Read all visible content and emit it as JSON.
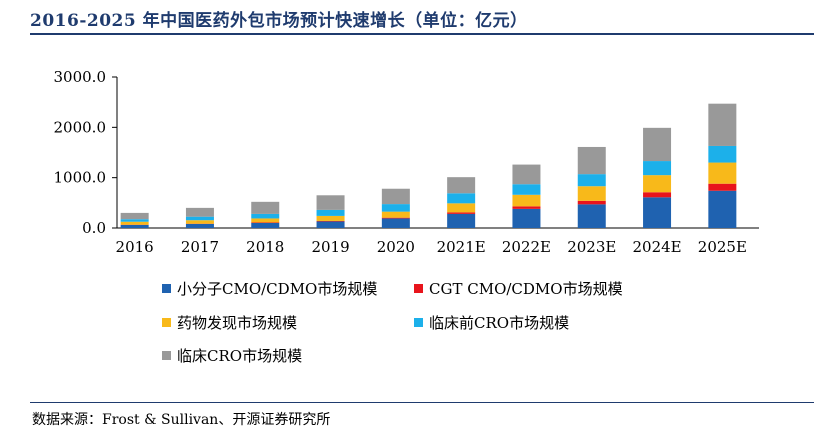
{
  "title": "2016-2025 年中国医药外包市场预计快速增长（单位：亿元）",
  "source": "数据来源：Frost & Sullivan、开源证券研究所",
  "colors": {
    "title": "#1f3b6e",
    "small_molecule": "#1f62b0",
    "cgt": "#e8141c",
    "discovery": "#f8b91a",
    "preclinical": "#1cb0ea",
    "clinical": "#999999"
  },
  "chart_data": {
    "type": "bar",
    "stacked": true,
    "categories": [
      "2016",
      "2017",
      "2018",
      "2019",
      "2020",
      "2021E",
      "2022E",
      "2023E",
      "2024E",
      "2025E"
    ],
    "ylim": [
      0,
      3000
    ],
    "yticks": [
      "0.0",
      "1000.0",
      "2000.0",
      "3000.0"
    ],
    "ytick_values": [
      0,
      1000,
      2000,
      3000
    ],
    "grid": false,
    "legend_position": "bottom",
    "series": [
      {
        "name": "小分子CMO/CDMO市场规模",
        "color_key": "small_molecule",
        "values": [
          60,
          80,
          100,
          130,
          190,
          280,
          380,
          470,
          610,
          740
        ]
      },
      {
        "name": "CGT CMO/CDMO市场规模",
        "color_key": "cgt",
        "values": [
          5,
          5,
          10,
          10,
          15,
          30,
          50,
          70,
          100,
          140
        ]
      },
      {
        "name": "药物发现市场规模",
        "color_key": "discovery",
        "values": [
          60,
          70,
          80,
          100,
          120,
          180,
          230,
          290,
          340,
          420
        ]
      },
      {
        "name": "临床前CRO市场规模",
        "color_key": "preclinical",
        "values": [
          50,
          70,
          90,
          120,
          150,
          200,
          210,
          240,
          280,
          330
        ]
      },
      {
        "name": "临床CRO市场规模",
        "color_key": "clinical",
        "values": [
          125,
          175,
          240,
          290,
          305,
          320,
          390,
          540,
          660,
          840
        ]
      }
    ]
  }
}
